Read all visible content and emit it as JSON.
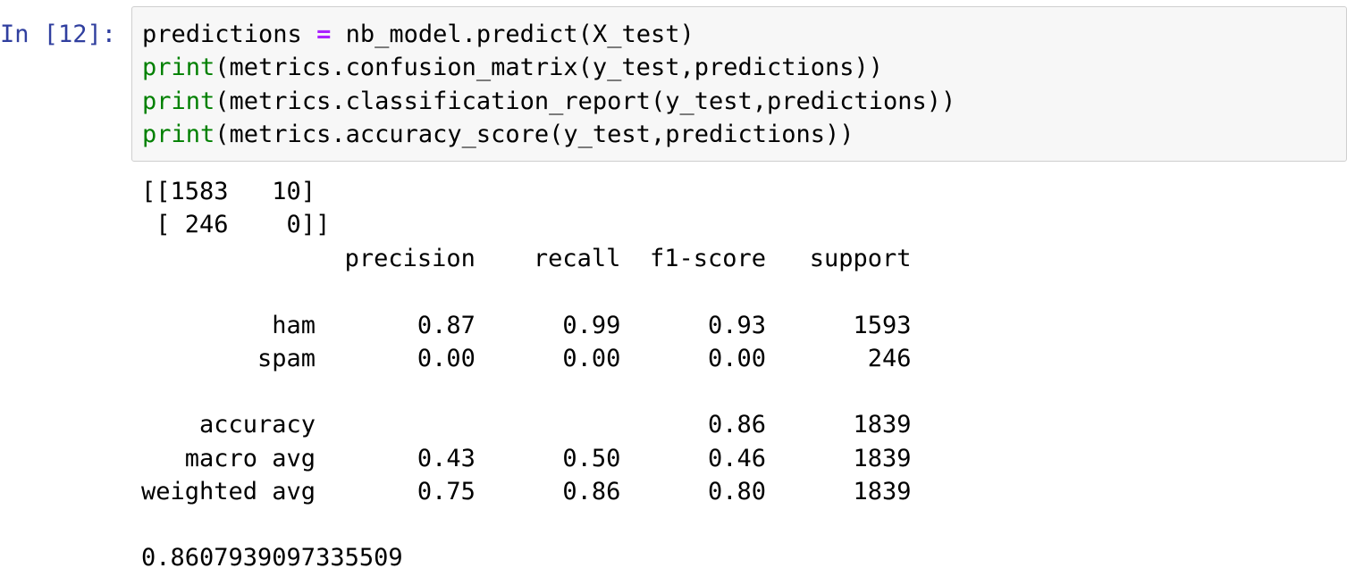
{
  "cell": {
    "prompt": "In [12]:",
    "code": {
      "line1": {
        "lhs": "predictions ",
        "op": "=",
        "rhs": " nb_model.predict(X_test)"
      },
      "line2": {
        "fn": "print",
        "args": "(metrics.confusion_matrix(y_test,predictions))"
      },
      "line3": {
        "fn": "print",
        "args": "(metrics.classification_report(y_test,predictions))"
      },
      "line4": {
        "fn": "print",
        "args": "(metrics.accuracy_score(y_test,predictions))"
      }
    },
    "output": {
      "matrix_row1": "[[1583   10]",
      "matrix_row2": " [ 246    0]]",
      "report_header": "              precision    recall  f1-score   support",
      "report_ham": "         ham       0.87      0.99      0.93      1593",
      "report_spam": "        spam       0.00      0.00      0.00       246",
      "report_accuracy": "    accuracy                           0.86      1839",
      "report_macro": "   macro avg       0.43      0.50      0.46      1839",
      "report_weighted": "weighted avg       0.75      0.86      0.80      1839",
      "accuracy_value": "0.8607939097335509"
    }
  },
  "colors": {
    "prompt": "#303F9F",
    "operator": "#AA22FF",
    "builtin": "#008000",
    "input_background": "#f7f7f7",
    "input_border": "#cfcfcf"
  }
}
